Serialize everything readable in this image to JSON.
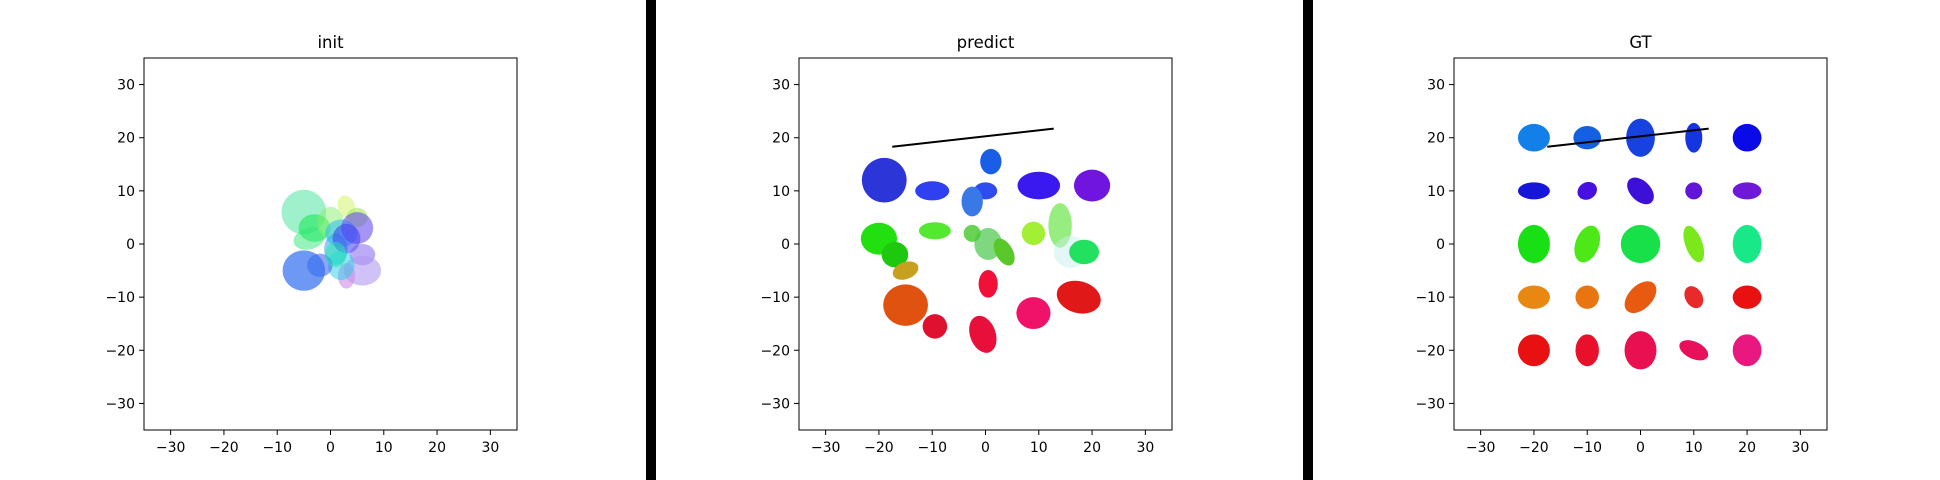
{
  "figure": {
    "background": "#ffffff",
    "divider_color": "#000000"
  },
  "chart_data": [
    {
      "type": "scatter",
      "title": "init",
      "xlabel": "",
      "ylabel": "",
      "xlim": [
        -35,
        35
      ],
      "ylim": [
        -35,
        35
      ],
      "xticks": [
        -30,
        -20,
        -10,
        0,
        10,
        20,
        30
      ],
      "yticks": [
        -30,
        -20,
        -10,
        0,
        10,
        20,
        30
      ],
      "grid": false,
      "ellipses": [
        {
          "x": -5,
          "y": 6,
          "rx": 4.2,
          "ry": 4.2,
          "angle": 0,
          "color": "#5fe8a8",
          "alpha": 0.6
        },
        {
          "x": -3,
          "y": 3,
          "rx": 3,
          "ry": 2.6,
          "angle": 0,
          "color": "#1ee85a",
          "alpha": 0.6
        },
        {
          "x": -4,
          "y": 1,
          "rx": 3,
          "ry": 2,
          "angle": 15,
          "color": "#2ee874",
          "alpha": 0.5
        },
        {
          "x": 0,
          "y": 4,
          "rx": 2.5,
          "ry": 3,
          "angle": 0,
          "color": "#88f070",
          "alpha": 0.5
        },
        {
          "x": 3,
          "y": 7,
          "rx": 1.6,
          "ry": 2.2,
          "angle": 20,
          "color": "#d6f57a",
          "alpha": 0.6
        },
        {
          "x": 5,
          "y": 5,
          "rx": 2,
          "ry": 1.8,
          "angle": 0,
          "color": "#a8e85c",
          "alpha": 0.6
        },
        {
          "x": 2,
          "y": 2,
          "rx": 3,
          "ry": 2.6,
          "angle": 0,
          "color": "#25bdf0",
          "alpha": 0.55
        },
        {
          "x": 1,
          "y": -1,
          "rx": 2.2,
          "ry": 3,
          "angle": 0,
          "color": "#2fa5e8",
          "alpha": 0.55
        },
        {
          "x": 5,
          "y": 3,
          "rx": 3,
          "ry": 3,
          "angle": 0,
          "color": "#6a4cf0",
          "alpha": 0.6
        },
        {
          "x": 3,
          "y": 1,
          "rx": 2.6,
          "ry": 2.8,
          "angle": 0,
          "color": "#3a3ef0",
          "alpha": 0.55
        },
        {
          "x": 6,
          "y": -2,
          "rx": 2.4,
          "ry": 2,
          "angle": 0,
          "color": "#7a58f0",
          "alpha": 0.5
        },
        {
          "x": 6,
          "y": -5,
          "rx": 3.5,
          "ry": 2.8,
          "angle": 0,
          "color": "#b09af0",
          "alpha": 0.6
        },
        {
          "x": 3,
          "y": -6,
          "rx": 1.6,
          "ry": 2.4,
          "angle": 0,
          "color": "#d08ae8",
          "alpha": 0.6
        },
        {
          "x": 2,
          "y": -4,
          "rx": 2.5,
          "ry": 2.8,
          "angle": 0,
          "color": "#25d0e8",
          "alpha": 0.5
        },
        {
          "x": -2,
          "y": -4,
          "rx": 2.4,
          "ry": 2.2,
          "angle": 0,
          "color": "#3a5af0",
          "alpha": 0.55
        },
        {
          "x": -5,
          "y": -5,
          "rx": 4,
          "ry": 3.8,
          "angle": 0,
          "color": "#2f6ef0",
          "alpha": 0.7
        },
        {
          "x": 1,
          "y": -2,
          "rx": 2,
          "ry": 2.4,
          "angle": 0,
          "color": "#25e8b0",
          "alpha": 0.5
        }
      ],
      "lines": []
    },
    {
      "type": "scatter",
      "title": "predict",
      "xlabel": "",
      "ylabel": "",
      "xlim": [
        -35,
        35
      ],
      "ylim": [
        -35,
        35
      ],
      "xticks": [
        -30,
        -20,
        -10,
        0,
        10,
        20,
        30
      ],
      "yticks": [
        -30,
        -20,
        -10,
        0,
        10,
        20,
        30
      ],
      "grid": false,
      "ellipses": [
        {
          "x": -19,
          "y": 12,
          "rx": 4.2,
          "ry": 4.2,
          "angle": 0,
          "color": "#2b35d8",
          "alpha": 1
        },
        {
          "x": -10,
          "y": 10,
          "rx": 3.2,
          "ry": 1.8,
          "angle": 0,
          "color": "#2f40f0",
          "alpha": 1
        },
        {
          "x": 1,
          "y": 15.5,
          "rx": 2,
          "ry": 2.4,
          "angle": 0,
          "color": "#1a5ee8",
          "alpha": 1
        },
        {
          "x": 0,
          "y": 10,
          "rx": 2.2,
          "ry": 1.6,
          "angle": 0,
          "color": "#2f4cf0",
          "alpha": 1
        },
        {
          "x": -2.5,
          "y": 8,
          "rx": 2,
          "ry": 2.8,
          "angle": 0,
          "color": "#3a78e8",
          "alpha": 1
        },
        {
          "x": 10,
          "y": 11,
          "rx": 4,
          "ry": 2.6,
          "angle": 0,
          "color": "#3a18f0",
          "alpha": 1
        },
        {
          "x": 20,
          "y": 11,
          "rx": 3.4,
          "ry": 3,
          "angle": 0,
          "color": "#7015e0",
          "alpha": 1
        },
        {
          "x": -20,
          "y": 1,
          "rx": 3.4,
          "ry": 3,
          "angle": 0,
          "color": "#22e010",
          "alpha": 1
        },
        {
          "x": -17,
          "y": -2,
          "rx": 2.5,
          "ry": 2.4,
          "angle": 0,
          "color": "#1ec80f",
          "alpha": 1
        },
        {
          "x": -15,
          "y": -5,
          "rx": 2.5,
          "ry": 1.6,
          "angle": 20,
          "color": "#c8a020",
          "alpha": 1
        },
        {
          "x": -9.5,
          "y": 2.5,
          "rx": 3,
          "ry": 1.6,
          "angle": 0,
          "color": "#55e830",
          "alpha": 1
        },
        {
          "x": -2.5,
          "y": 2,
          "rx": 1.6,
          "ry": 1.6,
          "angle": 0,
          "color": "#44c828",
          "alpha": 0.8
        },
        {
          "x": 0.5,
          "y": 0,
          "rx": 2.6,
          "ry": 3,
          "angle": 0,
          "color": "#48c848",
          "alpha": 0.7
        },
        {
          "x": 3.5,
          "y": -1.5,
          "rx": 1.6,
          "ry": 2.8,
          "angle": 30,
          "color": "#5ac82a",
          "alpha": 1
        },
        {
          "x": 9,
          "y": 2,
          "rx": 2.2,
          "ry": 2.2,
          "angle": -20,
          "color": "#a2ef35",
          "alpha": 1
        },
        {
          "x": 14,
          "y": 3.5,
          "rx": 2.2,
          "ry": 4.2,
          "angle": 0,
          "color": "#7ee860",
          "alpha": 0.8
        },
        {
          "x": 16,
          "y": -1.5,
          "rx": 3.2,
          "ry": 3,
          "angle": 0,
          "color": "#c8f0f0",
          "alpha": 0.5
        },
        {
          "x": 18.5,
          "y": -1.5,
          "rx": 2.8,
          "ry": 2.3,
          "angle": 0,
          "color": "#22e060",
          "alpha": 1
        },
        {
          "x": -15,
          "y": -11.5,
          "rx": 4.2,
          "ry": 3.9,
          "angle": 0,
          "color": "#e05210",
          "alpha": 1
        },
        {
          "x": -9.5,
          "y": -15.5,
          "rx": 2.3,
          "ry": 2.3,
          "angle": 0,
          "color": "#e01030",
          "alpha": 1
        },
        {
          "x": 0.5,
          "y": -7.5,
          "rx": 1.8,
          "ry": 2.6,
          "angle": 0,
          "color": "#f01038",
          "alpha": 1
        },
        {
          "x": 9,
          "y": -13,
          "rx": 3.2,
          "ry": 3,
          "angle": 0,
          "color": "#f01268",
          "alpha": 1
        },
        {
          "x": 17.5,
          "y": -10,
          "rx": 4.2,
          "ry": 3,
          "angle": -15,
          "color": "#e01818",
          "alpha": 1
        },
        {
          "x": -0.5,
          "y": -17,
          "rx": 2.4,
          "ry": 3.6,
          "angle": 20,
          "color": "#e8103a",
          "alpha": 1
        }
      ],
      "lines": [
        {
          "x1": -17.5,
          "y1": 18.3,
          "x2": 12.8,
          "y2": 21.7,
          "color": "#000000"
        }
      ]
    },
    {
      "type": "scatter",
      "title": "GT",
      "xlabel": "",
      "ylabel": "",
      "xlim": [
        -35,
        35
      ],
      "ylim": [
        -35,
        35
      ],
      "xticks": [
        -30,
        -20,
        -10,
        0,
        10,
        20,
        30
      ],
      "yticks": [
        -30,
        -20,
        -10,
        0,
        10,
        20,
        30
      ],
      "grid": false,
      "ellipses": [
        {
          "x": -20,
          "y": 20,
          "rx": 3,
          "ry": 2.6,
          "angle": 0,
          "color": "#1280e8",
          "alpha": 1
        },
        {
          "x": -10,
          "y": 20,
          "rx": 2.6,
          "ry": 2.2,
          "angle": 0,
          "color": "#1560e0",
          "alpha": 1
        },
        {
          "x": 0,
          "y": 20,
          "rx": 2.7,
          "ry": 3.6,
          "angle": 0,
          "color": "#1842e0",
          "alpha": 1
        },
        {
          "x": 10,
          "y": 20,
          "rx": 1.6,
          "ry": 2.8,
          "angle": 0,
          "color": "#1435e0",
          "alpha": 1
        },
        {
          "x": 20,
          "y": 20,
          "rx": 2.7,
          "ry": 2.6,
          "angle": 0,
          "color": "#0a0ae8",
          "alpha": 1
        },
        {
          "x": -20,
          "y": 10,
          "rx": 3,
          "ry": 1.6,
          "angle": 0,
          "color": "#1616d8",
          "alpha": 1
        },
        {
          "x": -10,
          "y": 10,
          "rx": 1.9,
          "ry": 1.6,
          "angle": 30,
          "color": "#4810e0",
          "alpha": 1
        },
        {
          "x": 0,
          "y": 10,
          "rx": 1.9,
          "ry": 3,
          "angle": 45,
          "color": "#3c10d8",
          "alpha": 1
        },
        {
          "x": 10,
          "y": 10,
          "rx": 1.6,
          "ry": 1.6,
          "angle": 0,
          "color": "#6015d8",
          "alpha": 1
        },
        {
          "x": 20,
          "y": 10,
          "rx": 2.7,
          "ry": 1.6,
          "angle": 0,
          "color": "#7018d8",
          "alpha": 1
        },
        {
          "x": -20,
          "y": 0,
          "rx": 3,
          "ry": 3.6,
          "angle": 0,
          "color": "#18e015",
          "alpha": 1
        },
        {
          "x": -10,
          "y": 0,
          "rx": 2.2,
          "ry": 3.6,
          "angle": -20,
          "color": "#4ce818",
          "alpha": 1
        },
        {
          "x": 0,
          "y": 0,
          "rx": 3.7,
          "ry": 3.6,
          "angle": 0,
          "color": "#18e048",
          "alpha": 1
        },
        {
          "x": 10,
          "y": 0,
          "rx": 1.6,
          "ry": 3.6,
          "angle": 20,
          "color": "#7ae81a",
          "alpha": 1
        },
        {
          "x": 20,
          "y": 0,
          "rx": 2.7,
          "ry": 3.6,
          "angle": 0,
          "color": "#18e888",
          "alpha": 1
        },
        {
          "x": -20,
          "y": -10,
          "rx": 3,
          "ry": 2.2,
          "angle": 0,
          "color": "#e88810",
          "alpha": 1
        },
        {
          "x": -10,
          "y": -10,
          "rx": 2.2,
          "ry": 2.2,
          "angle": 0,
          "color": "#e87510",
          "alpha": 1
        },
        {
          "x": 0,
          "y": -10,
          "rx": 2.2,
          "ry": 3.6,
          "angle": -45,
          "color": "#e85a10",
          "alpha": 1
        },
        {
          "x": 10,
          "y": -10,
          "rx": 1.6,
          "ry": 2.2,
          "angle": 30,
          "color": "#e82a2a",
          "alpha": 1
        },
        {
          "x": 20,
          "y": -10,
          "rx": 2.7,
          "ry": 2.2,
          "angle": 0,
          "color": "#e81010",
          "alpha": 1
        },
        {
          "x": -20,
          "y": -20,
          "rx": 3,
          "ry": 3,
          "angle": 0,
          "color": "#e81010",
          "alpha": 1
        },
        {
          "x": -10,
          "y": -20,
          "rx": 2.2,
          "ry": 3,
          "angle": 0,
          "color": "#e8102a",
          "alpha": 1
        },
        {
          "x": 0,
          "y": -20,
          "rx": 3,
          "ry": 3.6,
          "angle": 0,
          "color": "#e81050",
          "alpha": 1
        },
        {
          "x": 10,
          "y": -20,
          "rx": 1.6,
          "ry": 2.9,
          "angle": 65,
          "color": "#e8105a",
          "alpha": 1
        },
        {
          "x": 20,
          "y": -20,
          "rx": 2.7,
          "ry": 3,
          "angle": 0,
          "color": "#e81880",
          "alpha": 1
        }
      ],
      "lines": [
        {
          "x1": -17.5,
          "y1": 18.3,
          "x2": 12.8,
          "y2": 21.7,
          "color": "#000000"
        }
      ]
    }
  ]
}
